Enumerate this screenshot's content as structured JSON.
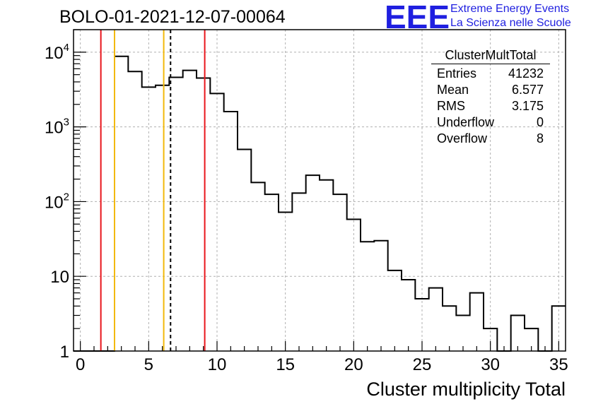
{
  "header": {
    "title": "BOLO-01-2021-12-07-00064",
    "logo_mark": "EEE",
    "logo_line1": "Extreme Energy Events",
    "logo_line2": "La Scienza nelle Scuole"
  },
  "stats": {
    "title": "ClusterMultTotal",
    "rows": [
      {
        "label": "Entries",
        "value": "41232"
      },
      {
        "label": "Mean",
        "value": "6.577"
      },
      {
        "label": "RMS",
        "value": "3.175"
      },
      {
        "label": "Underflow",
        "value": "0"
      },
      {
        "label": "Overflow",
        "value": "8"
      }
    ]
  },
  "colors": {
    "histogram": "#000000",
    "red_line": "#e8151b",
    "yellow_line": "#f2b90b",
    "grid": "#b0b0b0",
    "logo": "#1f1fe0"
  },
  "chart_data": {
    "type": "histogram",
    "xlabel": "Cluster multiplicity Total",
    "ylabel": "",
    "xlim": [
      -0.5,
      35.5
    ],
    "ylim": [
      1,
      20000
    ],
    "log_y": true,
    "grid": true,
    "bin_width": 1,
    "bins": [
      {
        "x": 0,
        "y": 0
      },
      {
        "x": 1,
        "y": 0
      },
      {
        "x": 2,
        "y": 0
      },
      {
        "x": 3,
        "y": 8800
      },
      {
        "x": 4,
        "y": 5500
      },
      {
        "x": 5,
        "y": 3400
      },
      {
        "x": 6,
        "y": 3600
      },
      {
        "x": 7,
        "y": 4600
      },
      {
        "x": 8,
        "y": 5700
      },
      {
        "x": 9,
        "y": 4500
      },
      {
        "x": 10,
        "y": 2800
      },
      {
        "x": 11,
        "y": 1600
      },
      {
        "x": 12,
        "y": 500
      },
      {
        "x": 13,
        "y": 180
      },
      {
        "x": 14,
        "y": 125
      },
      {
        "x": 15,
        "y": 72
      },
      {
        "x": 16,
        "y": 130
      },
      {
        "x": 17,
        "y": 225
      },
      {
        "x": 18,
        "y": 195
      },
      {
        "x": 19,
        "y": 125
      },
      {
        "x": 20,
        "y": 58
      },
      {
        "x": 21,
        "y": 29
      },
      {
        "x": 22,
        "y": 30
      },
      {
        "x": 23,
        "y": 12
      },
      {
        "x": 24,
        "y": 9
      },
      {
        "x": 25,
        "y": 5
      },
      {
        "x": 26,
        "y": 7
      },
      {
        "x": 27,
        "y": 4
      },
      {
        "x": 28,
        "y": 3
      },
      {
        "x": 29,
        "y": 6
      },
      {
        "x": 30,
        "y": 2
      },
      {
        "x": 31,
        "y": 0
      },
      {
        "x": 32,
        "y": 3
      },
      {
        "x": 33,
        "y": 2
      },
      {
        "x": 34,
        "y": 0
      },
      {
        "x": 35,
        "y": 4
      }
    ],
    "vertical_lines": [
      {
        "x": 1.5,
        "color": "red",
        "style": "solid"
      },
      {
        "x": 2.5,
        "color": "yellow",
        "style": "solid"
      },
      {
        "x": 6.1,
        "color": "yellow",
        "style": "solid"
      },
      {
        "x": 6.6,
        "color": "black",
        "style": "dashed"
      },
      {
        "x": 9.1,
        "color": "red",
        "style": "solid"
      }
    ],
    "x_ticks": [
      0,
      5,
      10,
      15,
      20,
      25,
      30,
      35
    ],
    "x_tick_labels": [
      "0",
      "5",
      "10",
      "15",
      "20",
      "25",
      "30",
      "35"
    ],
    "y_ticks": [
      1,
      10,
      100,
      1000,
      10000
    ],
    "y_tick_labels": [
      {
        "base": "1",
        "exp": ""
      },
      {
        "base": "10",
        "exp": ""
      },
      {
        "base": "10",
        "exp": "2"
      },
      {
        "base": "10",
        "exp": "3"
      },
      {
        "base": "10",
        "exp": "4"
      }
    ]
  }
}
